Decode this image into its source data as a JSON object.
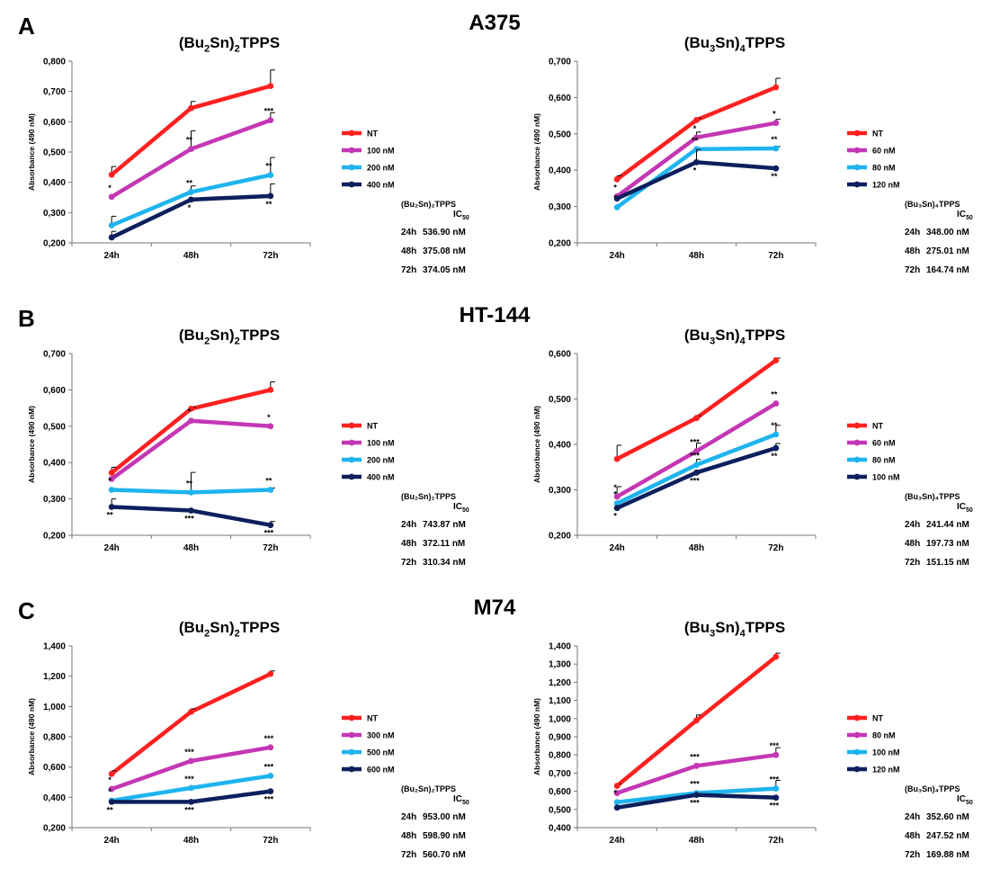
{
  "panels": [
    {
      "letter": "A",
      "cell_line": "A375",
      "charts": [
        {
          "compound": "(Bu2Sn)2TPPS",
          "title_parts": [
            "(Bu",
            "2",
            "Sn)",
            "2",
            "TPPS"
          ],
          "ic50_header": "(Bu₂Sn)₂TPPS",
          "ic50_label": "IC",
          "ic50_sub": "50",
          "ic50": [
            {
              "time": "24h",
              "value": "536.90 nM"
            },
            {
              "time": "48h",
              "value": "375.08 nM"
            },
            {
              "time": "72h",
              "value": "374.05 nM"
            }
          ],
          "chart_data": {
            "type": "line",
            "ylabel": "Absorbance (490 nM)",
            "categories": [
              "24h",
              "48h",
              "72h"
            ],
            "y_ticks": [
              "0,200",
              "0,300",
              "0,400",
              "0,500",
              "0,600",
              "0,700",
              "0,800"
            ],
            "ylim": [
              0.2,
              0.8
            ],
            "series": [
              {
                "name": "NT",
                "color": "#ff2020",
                "values": [
                  0.425,
                  0.645,
                  0.718
                ],
                "err": [
                  0.027,
                  0.022,
                  0.053
                ],
                "sig": [
                  "",
                  "",
                  ""
                ]
              },
              {
                "name": "100 nM",
                "color": "#c437b4",
                "values": [
                  0.352,
                  0.51,
                  0.605
                ],
                "err": [
                  0.0,
                  0.06,
                  0.025
                ],
                "sig": [
                  "*",
                  "**",
                  "***"
                ]
              },
              {
                "name": "200 nM",
                "color": "#1eb4ee",
                "values": [
                  0.258,
                  0.368,
                  0.424
                ],
                "err": [
                  0.03,
                  0.02,
                  0.058
                ],
                "sig": [
                  "",
                  "**",
                  "**"
                ]
              },
              {
                "name": "400 nM",
                "color": "#0d1f5c",
                "values": [
                  0.218,
                  0.343,
                  0.355
                ],
                "err": [
                  0.02,
                  0.0,
                  0.04
                ],
                "sig": [
                  "",
                  "*",
                  "**"
                ]
              }
            ]
          }
        },
        {
          "compound": "(Bu3Sn)4TPPS",
          "title_parts": [
            "(Bu",
            "3",
            "Sn)",
            "4",
            "TPPS"
          ],
          "ic50_header": "(Bu₃Sn)₄TPPS",
          "ic50_label": "IC",
          "ic50_sub": "50",
          "ic50": [
            {
              "time": "24h",
              "value": "348.00 nM"
            },
            {
              "time": "48h",
              "value": "275.01 nM"
            },
            {
              "time": "72h",
              "value": "164.74 nM"
            }
          ],
          "chart_data": {
            "type": "line",
            "ylabel": "Absorbance (490 nM)",
            "categories": [
              "24h",
              "48h",
              "72h"
            ],
            "y_ticks": [
              "0,200",
              "0,300",
              "0,400",
              "0,500",
              "0,600",
              "0,700"
            ],
            "ylim": [
              0.2,
              0.7
            ],
            "series": [
              {
                "name": "NT",
                "color": "#ff2020",
                "values": [
                  0.375,
                  0.538,
                  0.628
                ],
                "err": [
                  0.01,
                  0.005,
                  0.025
                ],
                "sig": [
                  "",
                  "",
                  ""
                ]
              },
              {
                "name": "60 nM",
                "color": "#c437b4",
                "values": [
                  0.328,
                  0.49,
                  0.53
                ],
                "err": [
                  0.0,
                  0.015,
                  0.01
                ],
                "sig": [
                  "*",
                  "*",
                  "*"
                ]
              },
              {
                "name": "80 nM",
                "color": "#1eb4ee",
                "values": [
                  0.298,
                  0.458,
                  0.46
                ],
                "err": [
                  0.0,
                  0.0,
                  0.005
                ],
                "sig": [
                  "*",
                  "**",
                  "**"
                ]
              },
              {
                "name": "120 nM",
                "color": "#0d1f5c",
                "values": [
                  0.322,
                  0.422,
                  0.405
                ],
                "err": [
                  0.0,
                  0.035,
                  0.0
                ],
                "sig": [
                  "",
                  "*",
                  "**"
                ]
              }
            ]
          }
        }
      ]
    },
    {
      "letter": "B",
      "cell_line": "HT-144",
      "charts": [
        {
          "compound": "(Bu2Sn)2TPPS",
          "title_parts": [
            "(Bu",
            "2",
            "Sn)",
            "2",
            "TPPS"
          ],
          "ic50_header": "(Bu₂Sn)₂TPPS",
          "ic50_label": "IC",
          "ic50_sub": "50",
          "ic50": [
            {
              "time": "24h",
              "value": "743.87 nM"
            },
            {
              "time": "48h",
              "value": "372.11 nM"
            },
            {
              "time": "72h",
              "value": "310.34 nM"
            }
          ],
          "chart_data": {
            "type": "line",
            "ylabel": "Absorbance (490 nM)",
            "categories": [
              "24h",
              "48h",
              "72h"
            ],
            "y_ticks": [
              "0,200",
              "0,300",
              "0,400",
              "0,500",
              "0,600",
              "0,700"
            ],
            "ylim": [
              0.2,
              0.7
            ],
            "series": [
              {
                "name": "NT",
                "color": "#ff2020",
                "values": [
                  0.372,
                  0.548,
                  0.6
                ],
                "err": [
                  0.015,
                  0.005,
                  0.022
                ],
                "sig": [
                  "",
                  "",
                  ""
                ]
              },
              {
                "name": "100 nM",
                "color": "#c437b4",
                "values": [
                  0.355,
                  0.515,
                  0.5
                ],
                "err": [
                  0.0,
                  0.0,
                  0.0
                ],
                "sig": [
                  "",
                  "*",
                  "*"
                ]
              },
              {
                "name": "200 nM",
                "color": "#1eb4ee",
                "values": [
                  0.325,
                  0.318,
                  0.325
                ],
                "err": [
                  0.0,
                  0.055,
                  0.005
                ],
                "sig": [
                  "*",
                  "**",
                  "**"
                ]
              },
              {
                "name": "400 nM",
                "color": "#0d1f5c",
                "values": [
                  0.278,
                  0.268,
                  0.228
                ],
                "err": [
                  0.022,
                  0.0,
                  0.01
                ],
                "sig": [
                  "**",
                  "***",
                  "***"
                ]
              }
            ]
          }
        },
        {
          "compound": "(Bu3Sn)4TPPS",
          "title_parts": [
            "(Bu",
            "3",
            "Sn)",
            "4",
            "TPPS"
          ],
          "ic50_header": "(Bu₃Sn)₄TPPS",
          "ic50_label": "IC",
          "ic50_sub": "50",
          "ic50": [
            {
              "time": "24h",
              "value": "241.44 nM"
            },
            {
              "time": "48h",
              "value": "197.73 nM"
            },
            {
              "time": "72h",
              "value": "151.15 nM"
            }
          ],
          "chart_data": {
            "type": "line",
            "ylabel": "Absorbance (490 nM)",
            "categories": [
              "24h",
              "48h",
              "72h"
            ],
            "y_ticks": [
              "0,200",
              "0,300",
              "0,400",
              "0,500",
              "0,600"
            ],
            "ylim": [
              0.2,
              0.6
            ],
            "series": [
              {
                "name": "NT",
                "color": "#ff2020",
                "values": [
                  0.368,
                  0.458,
                  0.585
                ],
                "err": [
                  0.03,
                  0.005,
                  0.005
                ],
                "sig": [
                  "",
                  "",
                  ""
                ]
              },
              {
                "name": "60 nM",
                "color": "#c437b4",
                "values": [
                  0.285,
                  0.385,
                  0.49
                ],
                "err": [
                  0.022,
                  0.018,
                  0.0
                ],
                "sig": [
                  "*",
                  "***",
                  "**"
                ]
              },
              {
                "name": "80 nM",
                "color": "#1eb4ee",
                "values": [
                  0.27,
                  0.355,
                  0.422
                ],
                "err": [
                  0.0,
                  0.012,
                  0.02
                ],
                "sig": [
                  "*",
                  "***",
                  "**"
                ]
              },
              {
                "name": "100 nM",
                "color": "#0d1f5c",
                "values": [
                  0.26,
                  0.338,
                  0.392
                ],
                "err": [
                  0.0,
                  0.0,
                  0.01
                ],
                "sig": [
                  "*",
                  "***",
                  "**"
                ]
              }
            ]
          }
        }
      ]
    },
    {
      "letter": "C",
      "cell_line": "M74",
      "charts": [
        {
          "compound": "(Bu2Sn)2TPPS",
          "title_parts": [
            "(Bu",
            "2",
            "Sn)",
            "2",
            "TPPS"
          ],
          "ic50_header": "(Bu₂Sn)₂TPPS",
          "ic50_label": "IC",
          "ic50_sub": "50",
          "ic50": [
            {
              "time": "24h",
              "value": "953.00 nM"
            },
            {
              "time": "48h",
              "value": "598.90 nM"
            },
            {
              "time": "72h",
              "value": "560.70 nM"
            }
          ],
          "chart_data": {
            "type": "line",
            "ylabel": "Absorbance (490 nM)",
            "categories": [
              "24h",
              "48h",
              "72h"
            ],
            "y_ticks": [
              "0,200",
              "0,400",
              "0,600",
              "0,800",
              "1,000",
              "1,200",
              "1,400"
            ],
            "ylim": [
              0.2,
              1.4
            ],
            "series": [
              {
                "name": "NT",
                "color": "#ff2020",
                "values": [
                  0.555,
                  0.965,
                  1.215
                ],
                "err": [
                  0.02,
                  0.02,
                  0.02
                ],
                "sig": [
                  "",
                  "",
                  ""
                ]
              },
              {
                "name": "300 nM",
                "color": "#c437b4",
                "values": [
                  0.455,
                  0.64,
                  0.73
                ],
                "err": [
                  0.0,
                  0.0,
                  0.0
                ],
                "sig": [
                  "*",
                  "***",
                  "***"
                ]
              },
              {
                "name": "500 nM",
                "color": "#1eb4ee",
                "values": [
                  0.378,
                  0.462,
                  0.542
                ],
                "err": [
                  0.0,
                  0.0,
                  0.0
                ],
                "sig": [
                  "*",
                  "***",
                  "***"
                ]
              },
              {
                "name": "600 nM",
                "color": "#0d1f5c",
                "values": [
                  0.37,
                  0.37,
                  0.44
                ],
                "err": [
                  0.0,
                  0.0,
                  0.0
                ],
                "sig": [
                  "**",
                  "***",
                  "***"
                ]
              }
            ]
          }
        },
        {
          "compound": "(Bu3Sn)4TPPS",
          "title_parts": [
            "(Bu",
            "3",
            "Sn)",
            "4",
            "TPPS"
          ],
          "ic50_header": "(Bu₃Sn)₄TPPS",
          "ic50_label": "IC",
          "ic50_sub": "50",
          "ic50": [
            {
              "time": "24h",
              "value": "352.60 nM"
            },
            {
              "time": "48h",
              "value": "247.52 nM"
            },
            {
              "time": "72h",
              "value": "169.88 nM"
            }
          ],
          "chart_data": {
            "type": "line",
            "ylabel": "Absorbance (490 nM)",
            "categories": [
              "24h",
              "48h",
              "72h"
            ],
            "y_ticks": [
              "0,400",
              "0,500",
              "0,600",
              "0,700",
              "0,800",
              "0,900",
              "1,000",
              "1,100",
              "1,200",
              "1,300",
              "1,400"
            ],
            "ylim": [
              0.4,
              1.4
            ],
            "series": [
              {
                "name": "NT",
                "color": "#ff2020",
                "values": [
                  0.63,
                  0.99,
                  1.34
                ],
                "err": [
                  0.01,
                  0.03,
                  0.02
                ],
                "sig": [
                  "",
                  "",
                  ""
                ]
              },
              {
                "name": "80 nM",
                "color": "#c437b4",
                "values": [
                  0.59,
                  0.74,
                  0.8
                ],
                "err": [
                  0.0,
                  0.0,
                  0.04
                ],
                "sig": [
                  "",
                  "***",
                  "***"
                ]
              },
              {
                "name": "100 nM",
                "color": "#1eb4ee",
                "values": [
                  0.54,
                  0.59,
                  0.615
                ],
                "err": [
                  0.0,
                  0.0,
                  0.045
                ],
                "sig": [
                  "*",
                  "***",
                  "***"
                ]
              },
              {
                "name": "120 nM",
                "color": "#0d1f5c",
                "values": [
                  0.51,
                  0.58,
                  0.565
                ],
                "err": [
                  0.0,
                  0.0,
                  0.0
                ],
                "sig": [
                  "",
                  "***",
                  "***"
                ]
              }
            ]
          }
        }
      ]
    }
  ]
}
